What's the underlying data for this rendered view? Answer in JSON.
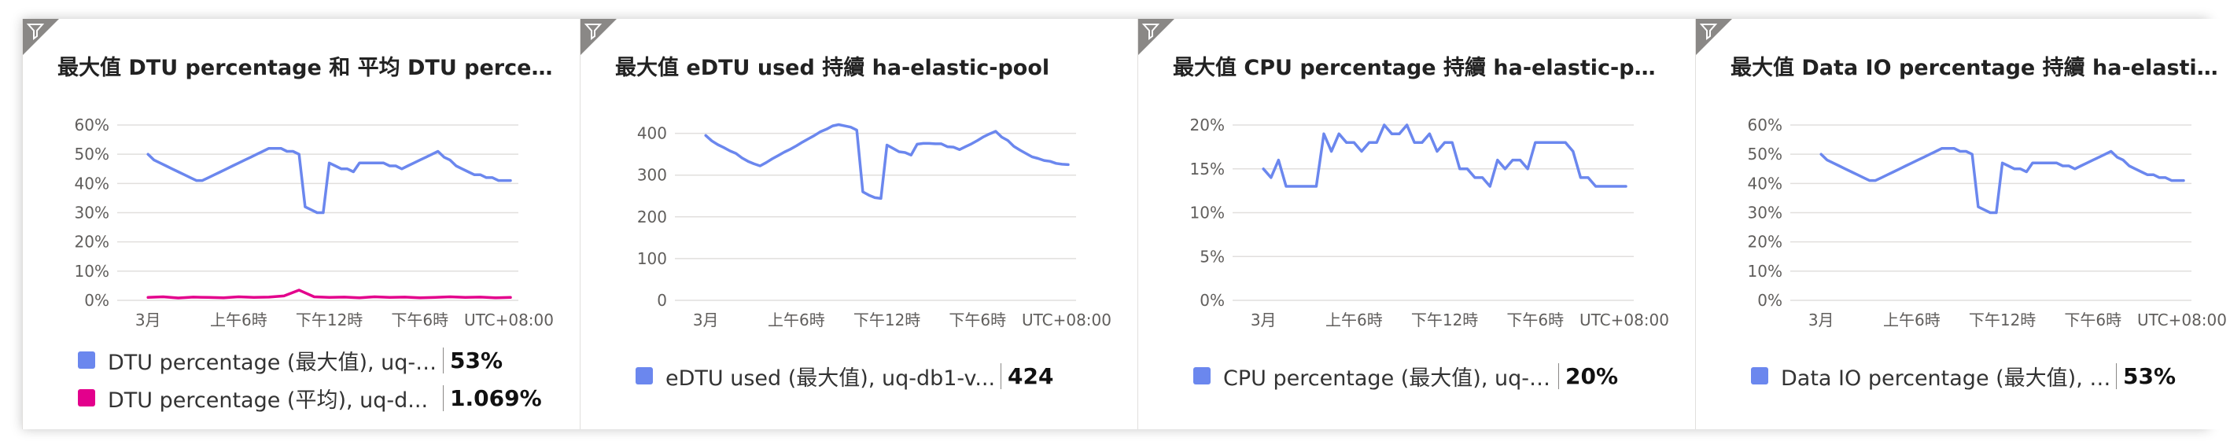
{
  "tiles": [
    {
      "title": "最大值 DTU percentage 和 平均 DTU percen...",
      "legend": [
        {
          "label": "DTU percentage (最大值), uq-d...",
          "value": "53%",
          "color": "#6b87ee"
        },
        {
          "label": "DTU percentage (平均), uq-d...",
          "value": "1.069%",
          "color": "#e3008c"
        }
      ]
    },
    {
      "title": "最大值 eDTU used 持續 ha-elastic-pool",
      "legend": [
        {
          "label": "eDTU used (最大值), uq-db1-v...",
          "value": "424",
          "color": "#6b87ee"
        }
      ]
    },
    {
      "title": "最大值 CPU percentage 持續 ha-elastic-pool",
      "legend": [
        {
          "label": "CPU percentage (最大值), uq-d...",
          "value": "20%",
          "color": "#6b87ee"
        }
      ]
    },
    {
      "title": "最大值 Data IO percentage 持續 ha-elastic-...",
      "legend": [
        {
          "label": "Data IO percentage (最大值), u...",
          "value": "53%",
          "color": "#6b87ee"
        }
      ]
    }
  ],
  "chart_data": [
    {
      "type": "line",
      "title": "最大值 DTU percentage 和 平均 DTU percen...",
      "y_ticks": [
        "0%",
        "10%",
        "20%",
        "30%",
        "40%",
        "50%",
        "60%"
      ],
      "ylim": [
        0,
        60
      ],
      "x_ticks": [
        "3月",
        "上午6時",
        "下午12時",
        "下午6時"
      ],
      "x_tick_positions": [
        0,
        6,
        12,
        18
      ],
      "x_unit_label": "UTC+08:00",
      "xlim": [
        -1,
        24
      ],
      "grid": true,
      "series": [
        {
          "name": "DTU percentage (最大值), uq-d...",
          "color": "#6b87ee",
          "x": [
            0,
            0.4,
            0.8,
            1.2,
            1.6,
            2,
            2.4,
            2.8,
            3.2,
            3.6,
            4,
            4.4,
            4.8,
            5.2,
            5.6,
            6,
            6.4,
            6.8,
            7.2,
            7.6,
            8,
            8.4,
            8.8,
            9.2,
            9.6,
            10,
            10.4,
            10.8,
            11.2,
            11.6,
            12,
            12.4,
            12.8,
            13.2,
            13.6,
            14,
            14.4,
            14.8,
            15.2,
            15.6,
            16,
            16.4,
            16.8,
            17.2,
            17.6,
            18,
            18.4,
            18.8,
            19.2,
            19.6,
            20,
            20.4,
            20.8,
            21.2,
            21.6,
            22,
            22.4,
            22.8,
            23.2,
            23.6,
            24
          ],
          "y": [
            50,
            48,
            47,
            46,
            45,
            44,
            43,
            42,
            41,
            41,
            42,
            43,
            44,
            45,
            46,
            47,
            48,
            49,
            50,
            51,
            52,
            52,
            52,
            51,
            51,
            50,
            32,
            31,
            30,
            30,
            47,
            46,
            45,
            45,
            44,
            47,
            47,
            47,
            47,
            47,
            46,
            46,
            45,
            46,
            47,
            48,
            49,
            50,
            51,
            49,
            48,
            46,
            45,
            44,
            43,
            43,
            42,
            42,
            41,
            41,
            41
          ]
        },
        {
          "name": "DTU percentage (平均), uq-d...",
          "color": "#e3008c",
          "x": [
            0,
            1,
            2,
            3,
            4,
            5,
            6,
            7,
            8,
            9,
            10,
            11,
            12,
            13,
            14,
            15,
            16,
            17,
            18,
            19,
            20,
            21,
            22,
            23,
            24
          ],
          "y": [
            1,
            1.2,
            0.8,
            1.1,
            1,
            0.9,
            1.2,
            1,
            1.1,
            1.5,
            3.5,
            1.2,
            1,
            1.1,
            0.9,
            1.2,
            1,
            1.1,
            0.9,
            1,
            1.2,
            1,
            1.1,
            0.9,
            1
          ]
        }
      ]
    },
    {
      "type": "line",
      "title": "最大值 eDTU used 持續 ha-elastic-pool",
      "y_ticks": [
        "0",
        "100",
        "200",
        "300",
        "400"
      ],
      "ylim": [
        0,
        420
      ],
      "x_ticks": [
        "3月",
        "上午6時",
        "下午12時",
        "下午6時"
      ],
      "x_tick_positions": [
        0,
        6,
        12,
        18
      ],
      "x_unit_label": "UTC+08:00",
      "xlim": [
        -1,
        24
      ],
      "grid": true,
      "series": [
        {
          "name": "eDTU used (最大值), uq-db1-v...",
          "color": "#6b87ee",
          "x": [
            0,
            0.4,
            0.8,
            1.2,
            1.6,
            2,
            2.4,
            2.8,
            3.2,
            3.6,
            4,
            4.4,
            4.8,
            5.2,
            5.6,
            6,
            6.4,
            6.8,
            7.2,
            7.6,
            8,
            8.4,
            8.8,
            9.2,
            9.6,
            10,
            10.4,
            10.8,
            11.2,
            11.6,
            12,
            12.4,
            12.8,
            13.2,
            13.6,
            14,
            14.4,
            14.8,
            15.2,
            15.6,
            16,
            16.4,
            16.8,
            17.2,
            17.6,
            18,
            18.4,
            18.8,
            19.2,
            19.6,
            20,
            20.4,
            20.8,
            21.2,
            21.6,
            22,
            22.4,
            22.8,
            23.2,
            23.6,
            24
          ],
          "y": [
            395,
            382,
            373,
            366,
            358,
            352,
            341,
            333,
            327,
            322,
            330,
            339,
            347,
            355,
            362,
            370,
            379,
            387,
            395,
            404,
            410,
            418,
            421,
            418,
            415,
            408,
            260,
            252,
            246,
            244,
            372,
            364,
            356,
            354,
            348,
            374,
            376,
            376,
            375,
            375,
            368,
            367,
            361,
            368,
            375,
            383,
            392,
            399,
            405,
            391,
            383,
            369,
            360,
            352,
            344,
            340,
            335,
            333,
            328,
            326,
            325
          ]
        }
      ]
    },
    {
      "type": "line",
      "title": "最大值 CPU percentage 持續 ha-elastic-pool",
      "y_ticks": [
        "0%",
        "5%",
        "10%",
        "15%",
        "20%"
      ],
      "ylim": [
        0,
        20
      ],
      "x_ticks": [
        "3月",
        "上午6時",
        "下午12時",
        "下午6時"
      ],
      "x_tick_positions": [
        0,
        6,
        12,
        18
      ],
      "x_unit_label": "UTC+08:00",
      "xlim": [
        -1,
        24
      ],
      "grid": true,
      "series": [
        {
          "name": "CPU percentage (最大值), uq-d...",
          "color": "#6b87ee",
          "x": [
            0,
            0.5,
            1,
            1.5,
            2,
            2.5,
            3,
            3.5,
            4,
            4.5,
            5,
            5.5,
            6,
            6.5,
            7,
            7.5,
            8,
            8.5,
            9,
            9.5,
            10,
            10.5,
            11,
            11.5,
            12,
            12.5,
            13,
            13.5,
            14,
            14.5,
            15,
            15.5,
            16,
            16.5,
            17,
            17.5,
            18,
            18.5,
            19,
            19.5,
            20,
            20.5,
            21,
            21.5,
            22,
            22.5,
            23,
            23.5,
            24
          ],
          "y": [
            15,
            14,
            16,
            13,
            13,
            13,
            13,
            13,
            19,
            17,
            19,
            18,
            18,
            17,
            18,
            18,
            20,
            19,
            19,
            20,
            18,
            18,
            19,
            17,
            18,
            18,
            15,
            15,
            14,
            14,
            13,
            16,
            15,
            16,
            16,
            15,
            18,
            18,
            18,
            18,
            18,
            17,
            14,
            14,
            13,
            13,
            13,
            13,
            13
          ]
        }
      ]
    },
    {
      "type": "line",
      "title": "最大值 Data IO percentage 持續 ha-elastic-...",
      "y_ticks": [
        "0%",
        "10%",
        "20%",
        "30%",
        "40%",
        "50%",
        "60%"
      ],
      "ylim": [
        0,
        60
      ],
      "x_ticks": [
        "3月",
        "上午6時",
        "下午12時",
        "下午6時"
      ],
      "x_tick_positions": [
        0,
        6,
        12,
        18
      ],
      "x_unit_label": "UTC+08:00",
      "xlim": [
        -1,
        24
      ],
      "grid": true,
      "series": [
        {
          "name": "Data IO percentage (最大值), u...",
          "color": "#6b87ee",
          "x": [
            0,
            0.4,
            0.8,
            1.2,
            1.6,
            2,
            2.4,
            2.8,
            3.2,
            3.6,
            4,
            4.4,
            4.8,
            5.2,
            5.6,
            6,
            6.4,
            6.8,
            7.2,
            7.6,
            8,
            8.4,
            8.8,
            9.2,
            9.6,
            10,
            10.4,
            10.8,
            11.2,
            11.6,
            12,
            12.4,
            12.8,
            13.2,
            13.6,
            14,
            14.4,
            14.8,
            15.2,
            15.6,
            16,
            16.4,
            16.8,
            17.2,
            17.6,
            18,
            18.4,
            18.8,
            19.2,
            19.6,
            20,
            20.4,
            20.8,
            21.2,
            21.6,
            22,
            22.4,
            22.8,
            23.2,
            23.6,
            24
          ],
          "y": [
            50,
            48,
            47,
            46,
            45,
            44,
            43,
            42,
            41,
            41,
            42,
            43,
            44,
            45,
            46,
            47,
            48,
            49,
            50,
            51,
            52,
            52,
            52,
            51,
            51,
            50,
            32,
            31,
            30,
            30,
            47,
            46,
            45,
            45,
            44,
            47,
            47,
            47,
            47,
            47,
            46,
            46,
            45,
            46,
            47,
            48,
            49,
            50,
            51,
            49,
            48,
            46,
            45,
            44,
            43,
            43,
            42,
            42,
            41,
            41,
            41
          ]
        }
      ]
    }
  ]
}
